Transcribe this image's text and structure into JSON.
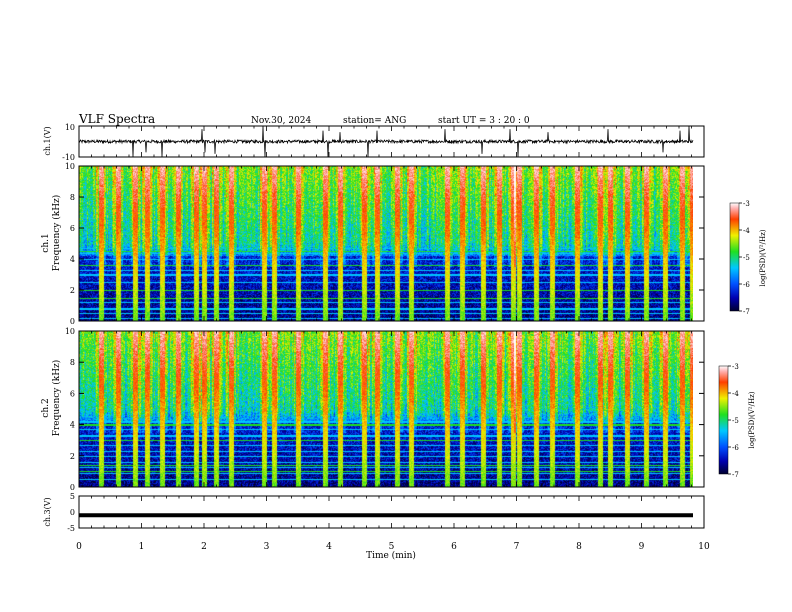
{
  "header": {
    "title": "VLF Spectra",
    "date": "Nov.30, 2024",
    "station": "station= ANG",
    "start": "start  UT  =   3  : 20 : 0"
  },
  "chart_data": [
    {
      "type": "line",
      "name": "ch1-waveform",
      "ylabel": "ch.1(V)",
      "ylim": [
        -10,
        10
      ],
      "y_ticks": [
        "10",
        "-10"
      ],
      "xlim": [
        0,
        10
      ],
      "baseline": 0,
      "typical_amplitude": 1.0,
      "spikes": [
        {
          "x": 0.87,
          "y": -10
        },
        {
          "x": 1.07,
          "y": -7
        },
        {
          "x": 1.32,
          "y": -10
        },
        {
          "x": 1.97,
          "y": 8
        },
        {
          "x": 2.01,
          "y": -7
        },
        {
          "x": 2.18,
          "y": -8
        },
        {
          "x": 2.95,
          "y": 10
        },
        {
          "x": 2.97,
          "y": -10
        },
        {
          "x": 3.9,
          "y": 7
        },
        {
          "x": 3.98,
          "y": -10
        },
        {
          "x": 4.17,
          "y": 6
        },
        {
          "x": 4.62,
          "y": -10
        },
        {
          "x": 4.77,
          "y": 7
        },
        {
          "x": 5.86,
          "y": 8
        },
        {
          "x": 6.45,
          "y": -8
        },
        {
          "x": 6.89,
          "y": 8
        },
        {
          "x": 7.02,
          "y": -10
        },
        {
          "x": 7.5,
          "y": 6
        },
        {
          "x": 8.46,
          "y": 8
        },
        {
          "x": 9.35,
          "y": -7
        },
        {
          "x": 9.62,
          "y": 7
        },
        {
          "x": 9.76,
          "y": 10
        }
      ]
    },
    {
      "type": "heatmap",
      "name": "ch1-spectrogram",
      "ylabel_top": "ch.1",
      "ylabel": "Frequency (kHz)",
      "ylim": [
        0,
        10
      ],
      "y_ticks": [
        "0",
        "2",
        "4",
        "6",
        "8",
        "10"
      ],
      "xlim": [
        0,
        9.8
      ],
      "colorbar": {
        "label": "log(PSD)(V²/Hz)",
        "ticks": [
          "-3",
          "-4",
          "-5",
          "-6",
          "-7"
        ],
        "range": [
          -7,
          -3
        ]
      },
      "lines_khz": [
        0.2,
        0.5,
        0.8,
        1.2,
        1.5,
        2.0,
        2.5,
        3.0,
        3.3,
        3.6,
        4.0,
        4.4,
        4.7
      ],
      "bright_lines_khz": [
        1.5,
        2.0,
        3.6,
        4.5
      ],
      "burst_times_min": [
        0.35,
        0.62,
        0.9,
        1.08,
        1.33,
        1.58,
        1.86,
        2.0,
        2.19,
        2.42,
        2.96,
        3.12,
        3.5,
        3.92,
        4.17,
        4.55,
        4.75,
        5.08,
        5.3,
        5.88,
        6.12,
        6.45,
        6.7,
        6.92,
        7.02,
        7.3,
        7.55,
        7.95,
        8.32,
        8.48,
        8.75,
        9.05,
        9.35,
        9.62,
        9.78
      ]
    },
    {
      "type": "heatmap",
      "name": "ch2-spectrogram",
      "ylabel_top": "ch.2",
      "ylabel": "Frequency (kHz)",
      "ylim": [
        0,
        10
      ],
      "y_ticks": [
        "0",
        "2",
        "4",
        "6",
        "8",
        "10"
      ],
      "xlim": [
        0,
        9.8
      ],
      "colorbar": {
        "label": "log(PSD)(V²/Hz)",
        "ticks": [
          "-3",
          "-4",
          "-5",
          "-6",
          "-7"
        ],
        "range": [
          -7,
          -3
        ]
      },
      "lines_khz": [
        0.5,
        0.9,
        1.3,
        1.6,
        2.0,
        2.3,
        2.7,
        3.0,
        3.3,
        3.7,
        4.0,
        4.2
      ],
      "bright_lines_khz": [
        1.0,
        1.4,
        3.0,
        4.0
      ],
      "burst_times_min": [
        0.35,
        0.62,
        0.9,
        1.08,
        1.33,
        1.58,
        1.86,
        2.0,
        2.19,
        2.42,
        2.96,
        3.12,
        3.5,
        3.92,
        4.17,
        4.55,
        4.75,
        5.08,
        5.3,
        5.88,
        6.12,
        6.45,
        6.7,
        6.92,
        7.02,
        7.3,
        7.55,
        7.95,
        8.32,
        8.48,
        8.75,
        9.05,
        9.35,
        9.62,
        9.78
      ]
    },
    {
      "type": "line",
      "name": "ch3-waveform",
      "ylabel": "ch.3(V)",
      "ylim": [
        -5,
        5
      ],
      "y_ticks": [
        "5",
        "0",
        "-5"
      ],
      "xlim": [
        0,
        10
      ],
      "constant_value": -1
    }
  ],
  "xaxis": {
    "label": "Time  (min)",
    "xlim": [
      0,
      10
    ],
    "ticks": [
      "0",
      "1",
      "2",
      "3",
      "4",
      "5",
      "6",
      "7",
      "8",
      "9",
      "10"
    ]
  }
}
